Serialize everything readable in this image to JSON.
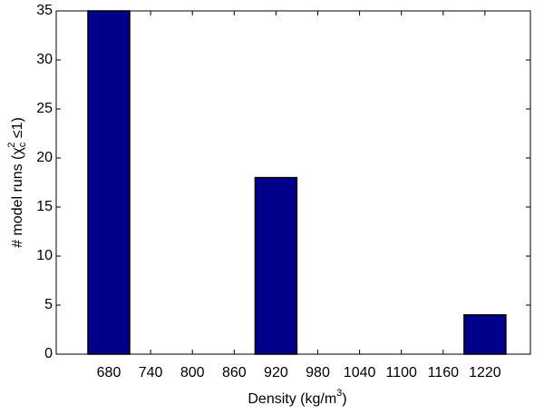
{
  "chart_data": {
    "type": "bar",
    "xlabel_parts": [
      "Density (kg/m",
      "3",
      ")"
    ],
    "ylabel_parts": [
      "# model runs (χ",
      "c",
      "2",
      " ≤1)"
    ],
    "categories": [
      "680",
      "740",
      "800",
      "860",
      "920",
      "980",
      "1040",
      "1100",
      "1160",
      "1220"
    ],
    "values": [
      35,
      0,
      0,
      0,
      18,
      0,
      0,
      0,
      0,
      4
    ],
    "color": "#00008b",
    "ylim": [
      0,
      35
    ],
    "yticks": [
      0,
      5,
      10,
      15,
      20,
      25,
      30,
      35
    ],
    "grid": false
  }
}
